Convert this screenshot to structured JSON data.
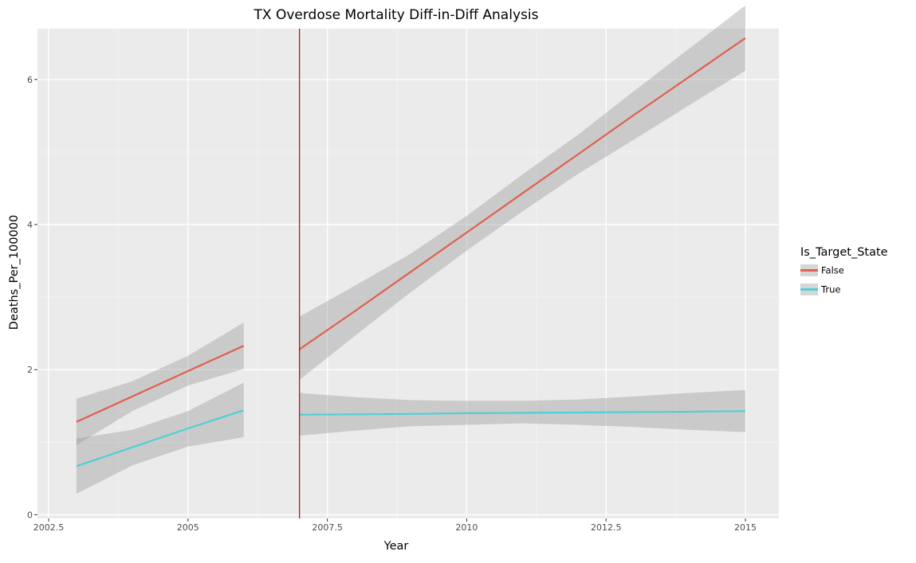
{
  "chart_data": {
    "type": "line",
    "title": "TX Overdose Mortality Diff-in-Diff Analysis",
    "xlabel": "Year",
    "ylabel": "Deaths_Per_100000",
    "xlim": [
      2002.3,
      2015.6
    ],
    "ylim": [
      -0.05,
      6.7
    ],
    "x_ticks": [
      2002.5,
      2005,
      2007.5,
      2010,
      2012.5,
      2015
    ],
    "x_tick_labels": [
      "2002.5",
      "2005",
      "2007.5",
      "2010",
      "2012.5",
      "2015"
    ],
    "y_ticks": [
      0,
      2,
      4,
      6
    ],
    "y_tick_labels": [
      "0",
      "2",
      "4",
      "6"
    ],
    "grid": true,
    "vertical_line": {
      "x": 2007,
      "color": "#cc0000"
    },
    "legend": {
      "title": "Is_Target_State",
      "position": "right"
    },
    "series": [
      {
        "name": "False",
        "color": "#e0604f",
        "segments": [
          {
            "x": [
              2003,
              2004,
              2005,
              2006
            ],
            "y": [
              1.28,
              1.63,
              1.98,
              2.33
            ],
            "lower": [
              0.96,
              1.43,
              1.78,
              2.01
            ],
            "upper": [
              1.6,
              1.84,
              2.19,
              2.65
            ]
          },
          {
            "x": [
              2007,
              2008,
              2009,
              2010,
              2011,
              2012,
              2013,
              2014,
              2015
            ],
            "y": [
              2.28,
              2.81,
              3.35,
              3.89,
              4.43,
              4.97,
              5.51,
              6.04,
              6.57
            ],
            "lower": [
              1.86,
              2.47,
              3.07,
              3.64,
              4.18,
              4.7,
              5.17,
              5.65,
              6.12
            ],
            "upper": [
              2.73,
              3.16,
              3.6,
              4.12,
              4.69,
              5.24,
              5.84,
              6.43,
              7.02
            ]
          }
        ]
      },
      {
        "name": "True",
        "color": "#4fcfd6",
        "segments": [
          {
            "x": [
              2003,
              2004,
              2005,
              2006
            ],
            "y": [
              0.67,
              0.93,
              1.19,
              1.44
            ],
            "lower": [
              0.29,
              0.68,
              0.94,
              1.07
            ],
            "upper": [
              1.05,
              1.17,
              1.43,
              1.82
            ]
          },
          {
            "x": [
              2007,
              2008,
              2009,
              2010,
              2011,
              2012,
              2013,
              2014,
              2015
            ],
            "y": [
              1.38,
              1.385,
              1.39,
              1.4,
              1.405,
              1.41,
              1.415,
              1.42,
              1.43
            ],
            "lower": [
              1.09,
              1.16,
              1.22,
              1.24,
              1.26,
              1.24,
              1.21,
              1.17,
              1.14
            ],
            "upper": [
              1.68,
              1.62,
              1.58,
              1.57,
              1.57,
              1.59,
              1.63,
              1.68,
              1.72
            ]
          }
        ]
      }
    ]
  }
}
